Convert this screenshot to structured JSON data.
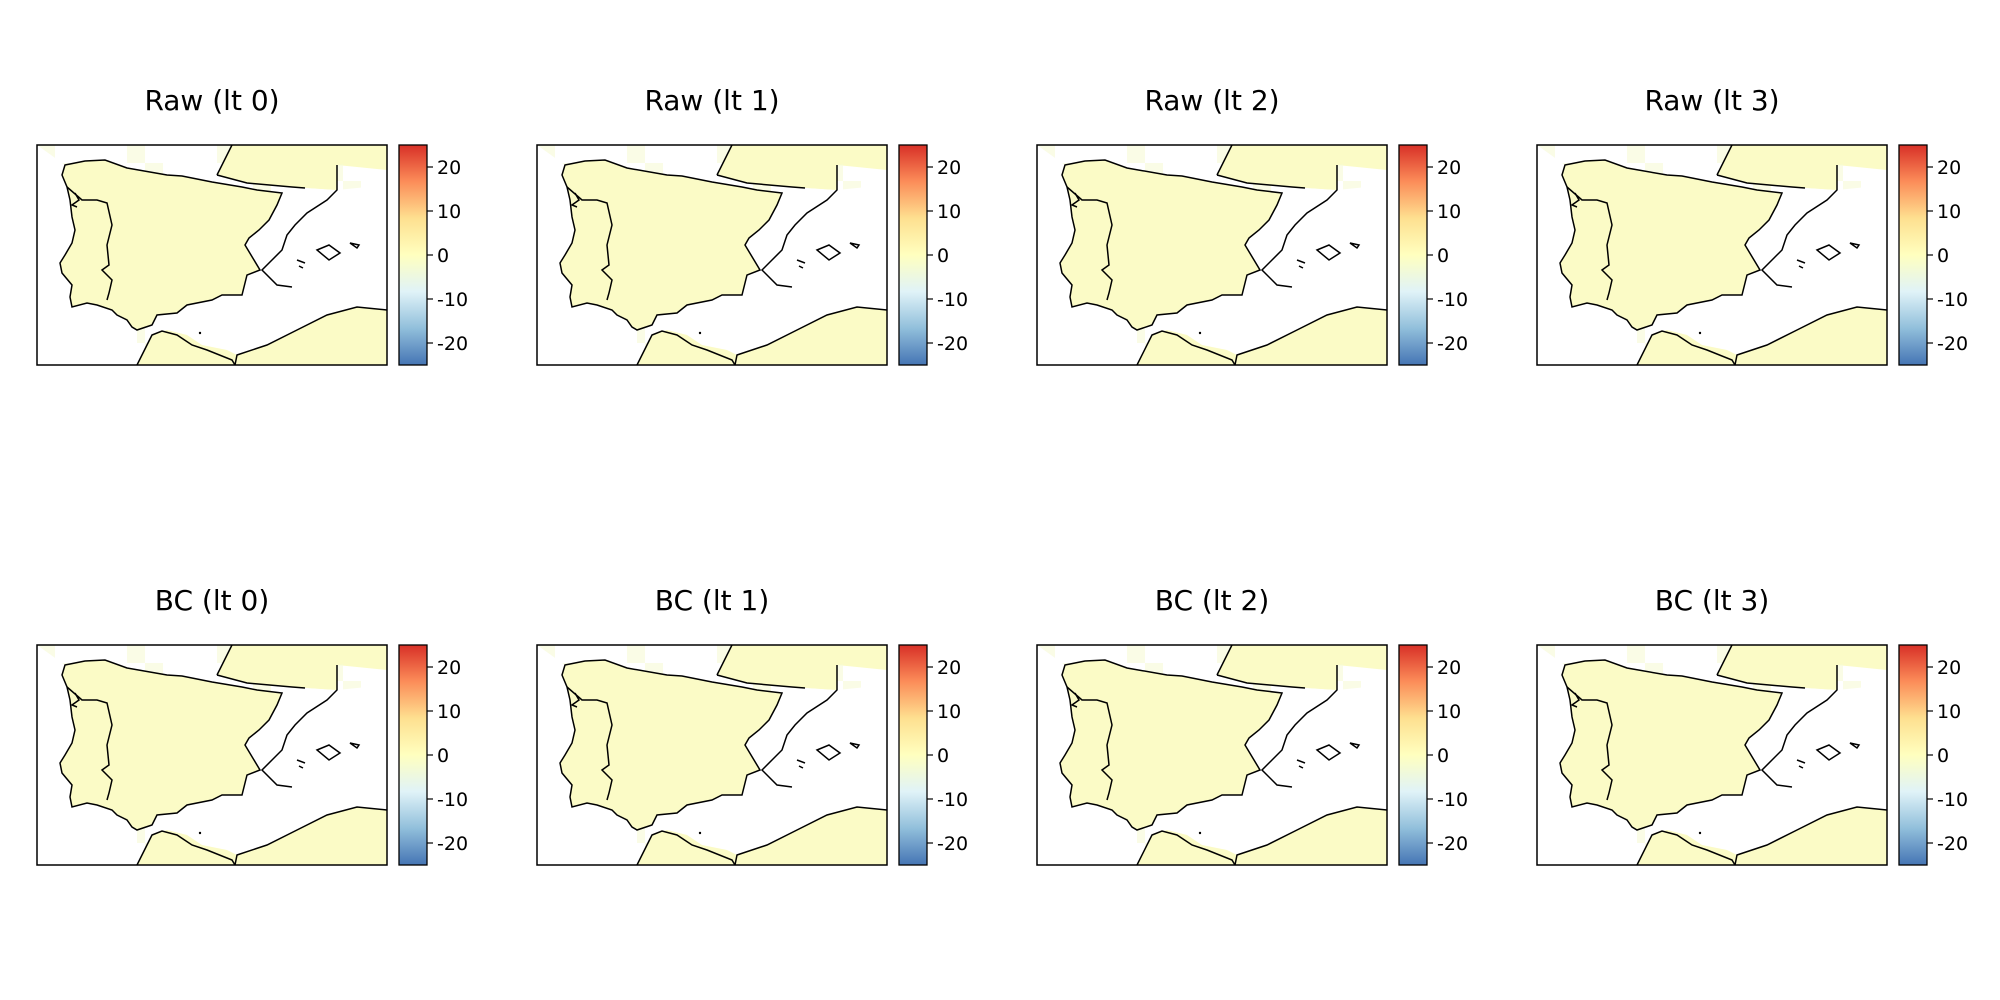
{
  "figure": {
    "panels": [
      {
        "title": "Raw (lt 0)",
        "row": "raw",
        "lead_time": 0
      },
      {
        "title": "Raw (lt 1)",
        "row": "raw",
        "lead_time": 1
      },
      {
        "title": "Raw (lt 2)",
        "row": "raw",
        "lead_time": 2
      },
      {
        "title": "Raw (lt 3)",
        "row": "raw",
        "lead_time": 3
      },
      {
        "title": "BC (lt 0)",
        "row": "bc",
        "lead_time": 0
      },
      {
        "title": "BC (lt 1)",
        "row": "bc",
        "lead_time": 1
      },
      {
        "title": "BC (lt 2)",
        "row": "bc",
        "lead_time": 2
      },
      {
        "title": "BC (lt 3)",
        "row": "bc",
        "lead_time": 3
      }
    ],
    "colorbar": {
      "range": [
        -25,
        25
      ],
      "ticks": [
        20,
        10,
        0,
        -10,
        -20
      ],
      "tick_labels": [
        "20",
        "10",
        "0",
        "-10",
        "-20"
      ],
      "stops": [
        "#4575b4",
        "#91bfdb",
        "#e0f3f8",
        "#ffffbf",
        "#fee090",
        "#fc8d59",
        "#d73027"
      ]
    },
    "map_colors": {
      "land_fill": "#fbfbc6",
      "land_fill_alt": "#f7fbd6",
      "sea_fill": "#ffffff",
      "coastline": "#000000"
    }
  }
}
